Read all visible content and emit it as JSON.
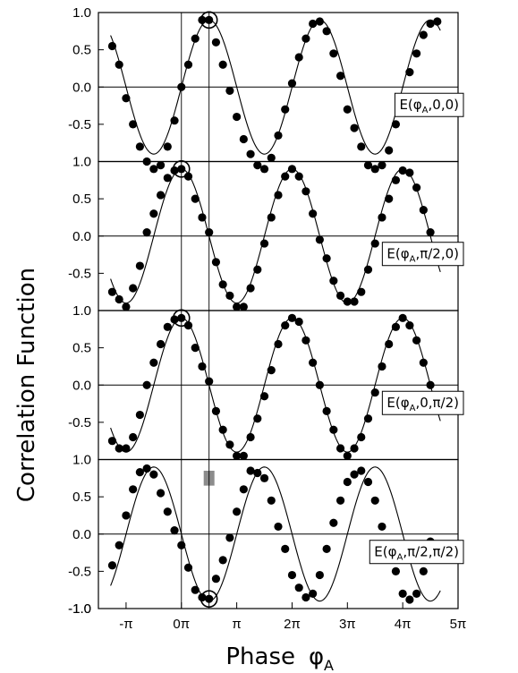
{
  "figure": {
    "ylabel": "Correlation Function",
    "xlabel_main": "Phase",
    "xlabel_symbol": "φ",
    "xlabel_sub": "A"
  },
  "chart_data": {
    "type": "scatter",
    "x_unit": "pi",
    "xlim": [
      -1.5,
      5
    ],
    "x_ticks": [
      {
        "value": -1,
        "label": "-π"
      },
      {
        "value": 0,
        "label": "0π"
      },
      {
        "value": 1,
        "label": "π"
      },
      {
        "value": 2,
        "label": "2π"
      },
      {
        "value": 3,
        "label": "3π"
      },
      {
        "value": 4,
        "label": "4π"
      },
      {
        "value": 5,
        "label": "5π"
      }
    ],
    "y_ticks": [
      "1.0",
      "0.5",
      "0.0",
      "-0.5",
      "-1.0"
    ],
    "ylim": [
      -1,
      1
    ],
    "vertical_lines_x": [
      0,
      0.5
    ],
    "panels": [
      {
        "legend": {
          "prefix": "E(φ",
          "sub": "A",
          "suffix": ",0,0)"
        },
        "fit_phase": 0.5,
        "highlight": {
          "x": 0.5,
          "y": 0.9
        },
        "points": [
          [
            -1.25,
            0.55
          ],
          [
            -1.125,
            0.3
          ],
          [
            -1.0,
            -0.15
          ],
          [
            -0.875,
            -0.5
          ],
          [
            -0.75,
            -0.8
          ],
          [
            -0.625,
            -1.0
          ],
          [
            -0.5,
            -1.1
          ],
          [
            -0.375,
            -1.05
          ],
          [
            -0.25,
            -0.8
          ],
          [
            -0.125,
            -0.45
          ],
          [
            0.0,
            0.0
          ],
          [
            0.125,
            0.3
          ],
          [
            0.25,
            0.65
          ],
          [
            0.375,
            0.9
          ],
          [
            0.5,
            0.9
          ],
          [
            0.625,
            0.6
          ],
          [
            0.75,
            0.3
          ],
          [
            0.875,
            -0.05
          ],
          [
            1.0,
            -0.4
          ],
          [
            1.125,
            -0.7
          ],
          [
            1.25,
            -0.9
          ],
          [
            1.375,
            -1.05
          ],
          [
            1.5,
            -1.1
          ],
          [
            1.625,
            -0.95
          ],
          [
            1.75,
            -0.65
          ],
          [
            1.875,
            -0.3
          ],
          [
            2.0,
            0.05
          ],
          [
            2.125,
            0.4
          ],
          [
            2.25,
            0.65
          ],
          [
            2.375,
            0.85
          ],
          [
            2.5,
            0.88
          ],
          [
            2.625,
            0.75
          ],
          [
            2.75,
            0.45
          ],
          [
            2.875,
            0.15
          ],
          [
            3.0,
            -0.3
          ],
          [
            3.125,
            -0.55
          ],
          [
            3.25,
            -0.8
          ],
          [
            3.375,
            -1.05
          ],
          [
            3.5,
            -1.1
          ],
          [
            3.625,
            -1.05
          ],
          [
            3.75,
            -0.85
          ],
          [
            3.875,
            -0.5
          ],
          [
            4.0,
            -0.15
          ],
          [
            4.125,
            0.2
          ],
          [
            4.25,
            0.45
          ],
          [
            4.375,
            0.7
          ],
          [
            4.5,
            0.85
          ],
          [
            4.625,
            0.88
          ]
        ]
      },
      {
        "legend": {
          "prefix": "E(φ",
          "sub": "A",
          "suffix": ",π/2,0)"
        },
        "fit_phase": 0,
        "highlight": {
          "x": 0.0,
          "y": 0.9
        },
        "points": [
          [
            -1.25,
            -0.75
          ],
          [
            -1.125,
            -0.85
          ],
          [
            -1.0,
            -0.95
          ],
          [
            -0.875,
            -0.7
          ],
          [
            -0.75,
            -0.4
          ],
          [
            -0.625,
            0.05
          ],
          [
            -0.5,
            0.3
          ],
          [
            -0.375,
            0.55
          ],
          [
            -0.25,
            0.78
          ],
          [
            -0.125,
            0.88
          ],
          [
            0.0,
            0.9
          ],
          [
            0.125,
            0.8
          ],
          [
            0.25,
            0.5
          ],
          [
            0.375,
            0.25
          ],
          [
            0.5,
            0.05
          ],
          [
            0.625,
            -0.35
          ],
          [
            0.75,
            -0.65
          ],
          [
            0.875,
            -0.8
          ],
          [
            1.0,
            -0.95
          ],
          [
            1.125,
            -0.95
          ],
          [
            1.25,
            -0.7
          ],
          [
            1.375,
            -0.45
          ],
          [
            1.5,
            -0.1
          ],
          [
            1.625,
            0.25
          ],
          [
            1.75,
            0.55
          ],
          [
            1.875,
            0.8
          ],
          [
            2.0,
            0.9
          ],
          [
            2.125,
            0.8
          ],
          [
            2.25,
            0.6
          ],
          [
            2.375,
            0.3
          ],
          [
            2.5,
            -0.05
          ],
          [
            2.625,
            -0.3
          ],
          [
            2.75,
            -0.6
          ],
          [
            2.875,
            -0.8
          ],
          [
            3.0,
            -0.88
          ],
          [
            3.125,
            -0.88
          ],
          [
            3.25,
            -0.75
          ],
          [
            3.375,
            -0.45
          ],
          [
            3.5,
            -0.1
          ],
          [
            3.625,
            0.25
          ],
          [
            3.75,
            0.5
          ],
          [
            3.875,
            0.75
          ],
          [
            4.0,
            0.88
          ],
          [
            4.125,
            0.85
          ],
          [
            4.25,
            0.65
          ],
          [
            4.375,
            0.35
          ],
          [
            4.5,
            0.05
          ],
          [
            4.625,
            -0.2
          ]
        ]
      },
      {
        "legend": {
          "prefix": "E(φ",
          "sub": "A",
          "suffix": ",0,π/2)"
        },
        "fit_phase": 0,
        "highlight": {
          "x": 0.0,
          "y": 0.9
        },
        "points": [
          [
            -1.25,
            -0.75
          ],
          [
            -1.125,
            -0.85
          ],
          [
            -1.0,
            -0.85
          ],
          [
            -0.875,
            -0.7
          ],
          [
            -0.75,
            -0.4
          ],
          [
            -0.625,
            0.0
          ],
          [
            -0.5,
            0.3
          ],
          [
            -0.375,
            0.55
          ],
          [
            -0.25,
            0.78
          ],
          [
            -0.125,
            0.88
          ],
          [
            0.0,
            0.9
          ],
          [
            0.125,
            0.8
          ],
          [
            0.25,
            0.5
          ],
          [
            0.375,
            0.25
          ],
          [
            0.5,
            0.05
          ],
          [
            0.625,
            -0.35
          ],
          [
            0.75,
            -0.6
          ],
          [
            0.875,
            -0.8
          ],
          [
            1.0,
            -0.95
          ],
          [
            1.125,
            -0.95
          ],
          [
            1.25,
            -0.7
          ],
          [
            1.375,
            -0.45
          ],
          [
            1.5,
            -0.15
          ],
          [
            1.625,
            0.2
          ],
          [
            1.75,
            0.55
          ],
          [
            1.875,
            0.8
          ],
          [
            2.0,
            0.9
          ],
          [
            2.125,
            0.85
          ],
          [
            2.25,
            0.6
          ],
          [
            2.375,
            0.3
          ],
          [
            2.5,
            0.0
          ],
          [
            2.625,
            -0.35
          ],
          [
            2.75,
            -0.6
          ],
          [
            2.875,
            -0.85
          ],
          [
            3.0,
            -0.95
          ],
          [
            3.125,
            -0.85
          ],
          [
            3.25,
            -0.7
          ],
          [
            3.375,
            -0.45
          ],
          [
            3.5,
            -0.1
          ],
          [
            3.625,
            0.25
          ],
          [
            3.75,
            0.55
          ],
          [
            3.875,
            0.78
          ],
          [
            4.0,
            0.9
          ],
          [
            4.125,
            0.8
          ],
          [
            4.25,
            0.6
          ],
          [
            4.375,
            0.3
          ],
          [
            4.5,
            0.0
          ],
          [
            4.625,
            -0.2
          ]
        ]
      },
      {
        "legend": {
          "prefix": "E(φ",
          "sub": "A",
          "suffix": ",π/2,π/2)"
        },
        "fit_phase": -0.5,
        "highlight": {
          "x": 0.5,
          "y": -0.87
        },
        "marker_bar": {
          "x": 0.5,
          "y_top": 0.85,
          "y_bottom": 0.65
        },
        "points": [
          [
            -1.25,
            -0.42
          ],
          [
            -1.125,
            -0.15
          ],
          [
            -1.0,
            0.25
          ],
          [
            -0.875,
            0.6
          ],
          [
            -0.75,
            0.83
          ],
          [
            -0.625,
            0.88
          ],
          [
            -0.5,
            0.8
          ],
          [
            -0.375,
            0.55
          ],
          [
            -0.25,
            0.3
          ],
          [
            -0.125,
            0.05
          ],
          [
            0.0,
            -0.15
          ],
          [
            0.125,
            -0.45
          ],
          [
            0.25,
            -0.75
          ],
          [
            0.375,
            -0.85
          ],
          [
            0.5,
            -0.87
          ],
          [
            0.625,
            -0.6
          ],
          [
            0.75,
            -0.35
          ],
          [
            0.875,
            -0.05
          ],
          [
            1.0,
            0.3
          ],
          [
            1.125,
            0.6
          ],
          [
            1.25,
            0.85
          ],
          [
            1.375,
            0.82
          ],
          [
            1.5,
            0.75
          ],
          [
            1.625,
            0.45
          ],
          [
            1.75,
            0.1
          ],
          [
            1.875,
            -0.2
          ],
          [
            2.0,
            -0.55
          ],
          [
            2.125,
            -0.72
          ],
          [
            2.25,
            -0.85
          ],
          [
            2.375,
            -0.8
          ],
          [
            2.5,
            -0.55
          ],
          [
            2.625,
            -0.2
          ],
          [
            2.75,
            0.15
          ],
          [
            2.875,
            0.45
          ],
          [
            3.0,
            0.7
          ],
          [
            3.125,
            0.8
          ],
          [
            3.25,
            0.85
          ],
          [
            3.375,
            0.7
          ],
          [
            3.5,
            0.45
          ],
          [
            3.625,
            0.1
          ],
          [
            3.75,
            -0.2
          ],
          [
            3.875,
            -0.5
          ],
          [
            4.0,
            -0.8
          ],
          [
            4.125,
            -0.88
          ],
          [
            4.25,
            -0.8
          ],
          [
            4.375,
            -0.5
          ],
          [
            4.5,
            -0.1
          ]
        ]
      }
    ]
  }
}
